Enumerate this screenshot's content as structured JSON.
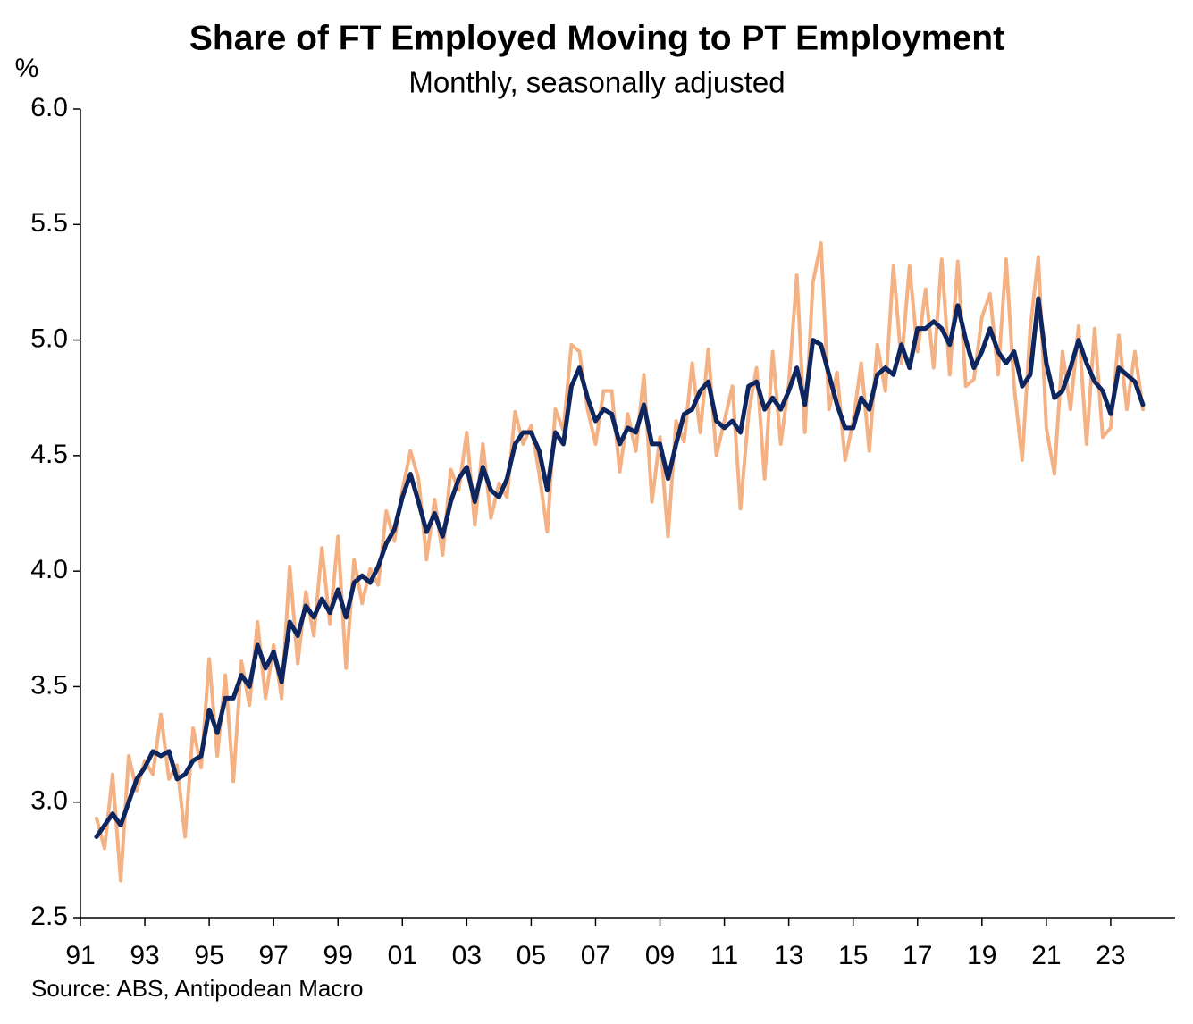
{
  "chart_data": {
    "type": "line",
    "title": "Share of FT Employed Moving to PT Employment",
    "subtitle": "Monthly, seasonally adjusted",
    "y_label": "%",
    "source": "Source: ABS, Antipodean Macro",
    "x": [
      1991.5,
      1991.75,
      1992,
      1992.25,
      1992.5,
      1992.75,
      1993,
      1993.25,
      1993.5,
      1993.75,
      1994,
      1994.25,
      1994.5,
      1994.75,
      1995,
      1995.25,
      1995.5,
      1995.75,
      1996,
      1996.25,
      1996.5,
      1996.75,
      1997,
      1997.25,
      1997.5,
      1997.75,
      1998,
      1998.25,
      1998.5,
      1998.75,
      1999,
      1999.25,
      1999.5,
      1999.75,
      2000,
      2000.25,
      2000.5,
      2000.75,
      2001,
      2001.25,
      2001.5,
      2001.75,
      2002,
      2002.25,
      2002.5,
      2002.75,
      2003,
      2003.25,
      2003.5,
      2003.75,
      2004,
      2004.25,
      2004.5,
      2004.75,
      2005,
      2005.25,
      2005.5,
      2005.75,
      2006,
      2006.25,
      2006.5,
      2006.75,
      2007,
      2007.25,
      2007.5,
      2007.75,
      2008,
      2008.25,
      2008.5,
      2008.75,
      2009,
      2009.25,
      2009.5,
      2009.75,
      2010,
      2010.25,
      2010.5,
      2010.75,
      2011,
      2011.25,
      2011.5,
      2011.75,
      2012,
      2012.25,
      2012.5,
      2012.75,
      2013,
      2013.25,
      2013.5,
      2013.75,
      2014,
      2014.25,
      2014.5,
      2014.75,
      2015,
      2015.25,
      2015.5,
      2015.75,
      2016,
      2016.25,
      2016.5,
      2016.75,
      2017,
      2017.25,
      2017.5,
      2017.75,
      2018,
      2018.25,
      2018.5,
      2018.75,
      2019,
      2019.25,
      2019.5,
      2019.75,
      2020,
      2020.25,
      2020.5,
      2020.75,
      2021,
      2021.25,
      2021.5,
      2021.75,
      2022,
      2022.25,
      2022.5,
      2022.75,
      2023,
      2023.25,
      2023.5,
      2023.75,
      2024
    ],
    "series": [
      {
        "color": "#f4b183",
        "values": [
          2.93,
          2.8,
          3.12,
          2.66,
          3.2,
          3.05,
          3.18,
          3.12,
          3.38,
          3.1,
          3.16,
          2.85,
          3.32,
          3.15,
          3.62,
          3.2,
          3.55,
          3.09,
          3.61,
          3.42,
          3.78,
          3.45,
          3.68,
          3.45,
          4.02,
          3.6,
          3.91,
          3.72,
          4.1,
          3.77,
          4.15,
          3.58,
          4.05,
          3.86,
          4.01,
          3.94,
          4.26,
          4.13,
          4.35,
          4.52,
          4.4,
          4.05,
          4.31,
          4.07,
          4.44,
          4.35,
          4.6,
          4.2,
          4.55,
          4.23,
          4.38,
          4.32,
          4.69,
          4.55,
          4.63,
          4.42,
          4.17,
          4.7,
          4.61,
          4.98,
          4.95,
          4.7,
          4.55,
          4.78,
          4.78,
          4.43,
          4.68,
          4.52,
          4.85,
          4.3,
          4.58,
          4.15,
          4.65,
          4.56,
          4.9,
          4.6,
          4.96,
          4.5,
          4.65,
          4.8,
          4.27,
          4.68,
          4.88,
          4.4,
          4.95,
          4.55,
          4.81,
          5.28,
          4.6,
          5.25,
          5.42,
          4.7,
          4.86,
          4.48,
          4.65,
          4.9,
          4.52,
          4.98,
          4.78,
          5.32,
          4.9,
          5.32,
          4.95,
          5.22,
          4.88,
          5.35,
          4.85,
          5.34,
          4.8,
          4.83,
          5.1,
          5.2,
          4.85,
          5.35,
          4.8,
          4.48,
          5.05,
          5.36,
          4.62,
          4.42,
          4.95,
          4.7,
          5.06,
          4.55,
          5.05,
          4.58,
          4.62,
          5.02,
          4.7,
          4.95,
          4.7
        ],
        "width": 4
      },
      {
        "color": "#0d2660",
        "values": [
          2.85,
          2.9,
          2.95,
          2.9,
          3.0,
          3.1,
          3.15,
          3.22,
          3.2,
          3.22,
          3.1,
          3.12,
          3.18,
          3.2,
          3.4,
          3.3,
          3.45,
          3.45,
          3.55,
          3.5,
          3.68,
          3.58,
          3.65,
          3.52,
          3.78,
          3.72,
          3.85,
          3.8,
          3.88,
          3.82,
          3.92,
          3.8,
          3.95,
          3.98,
          3.95,
          4.02,
          4.12,
          4.18,
          4.32,
          4.42,
          4.3,
          4.17,
          4.25,
          4.15,
          4.3,
          4.4,
          4.45,
          4.3,
          4.45,
          4.35,
          4.32,
          4.4,
          4.55,
          4.6,
          4.6,
          4.52,
          4.35,
          4.6,
          4.55,
          4.8,
          4.88,
          4.75,
          4.65,
          4.7,
          4.68,
          4.55,
          4.62,
          4.6,
          4.72,
          4.55,
          4.55,
          4.4,
          4.55,
          4.68,
          4.7,
          4.78,
          4.82,
          4.65,
          4.62,
          4.65,
          4.6,
          4.8,
          4.82,
          4.7,
          4.75,
          4.7,
          4.78,
          4.88,
          4.72,
          5.0,
          4.98,
          4.85,
          4.72,
          4.62,
          4.62,
          4.75,
          4.7,
          4.85,
          4.88,
          4.85,
          4.98,
          4.88,
          5.05,
          5.05,
          5.08,
          5.05,
          4.98,
          5.15,
          5.0,
          4.88,
          4.95,
          5.05,
          4.95,
          4.9,
          4.95,
          4.8,
          4.85,
          5.18,
          4.9,
          4.75,
          4.78,
          4.88,
          5.0,
          4.9,
          4.82,
          4.78,
          4.68,
          4.88,
          4.85,
          4.82,
          4.72
        ],
        "width": 5
      }
    ],
    "xlim": [
      1991,
      2025
    ],
    "xticks": [
      {
        "value": 1991,
        "label": "91"
      },
      {
        "value": 1993,
        "label": "93"
      },
      {
        "value": 1995,
        "label": "95"
      },
      {
        "value": 1997,
        "label": "97"
      },
      {
        "value": 1999,
        "label": "99"
      },
      {
        "value": 2001,
        "label": "01"
      },
      {
        "value": 2003,
        "label": "03"
      },
      {
        "value": 2005,
        "label": "05"
      },
      {
        "value": 2007,
        "label": "07"
      },
      {
        "value": 2009,
        "label": "09"
      },
      {
        "value": 2011,
        "label": "11"
      },
      {
        "value": 2013,
        "label": "13"
      },
      {
        "value": 2015,
        "label": "15"
      },
      {
        "value": 2017,
        "label": "17"
      },
      {
        "value": 2019,
        "label": "19"
      },
      {
        "value": 2021,
        "label": "21"
      },
      {
        "value": 2023,
        "label": "23"
      }
    ],
    "ylim": [
      2.5,
      6.0
    ],
    "yticks": [
      2.5,
      {
        "value": 3.0,
        "label": "3.0"
      },
      3.5,
      {
        "value": 4.0,
        "label": "4.0"
      },
      4.5,
      {
        "value": 5.0,
        "label": "5.0"
      },
      5.5,
      {
        "value": 6.0,
        "label": "6.0"
      }
    ],
    "grid": false
  }
}
